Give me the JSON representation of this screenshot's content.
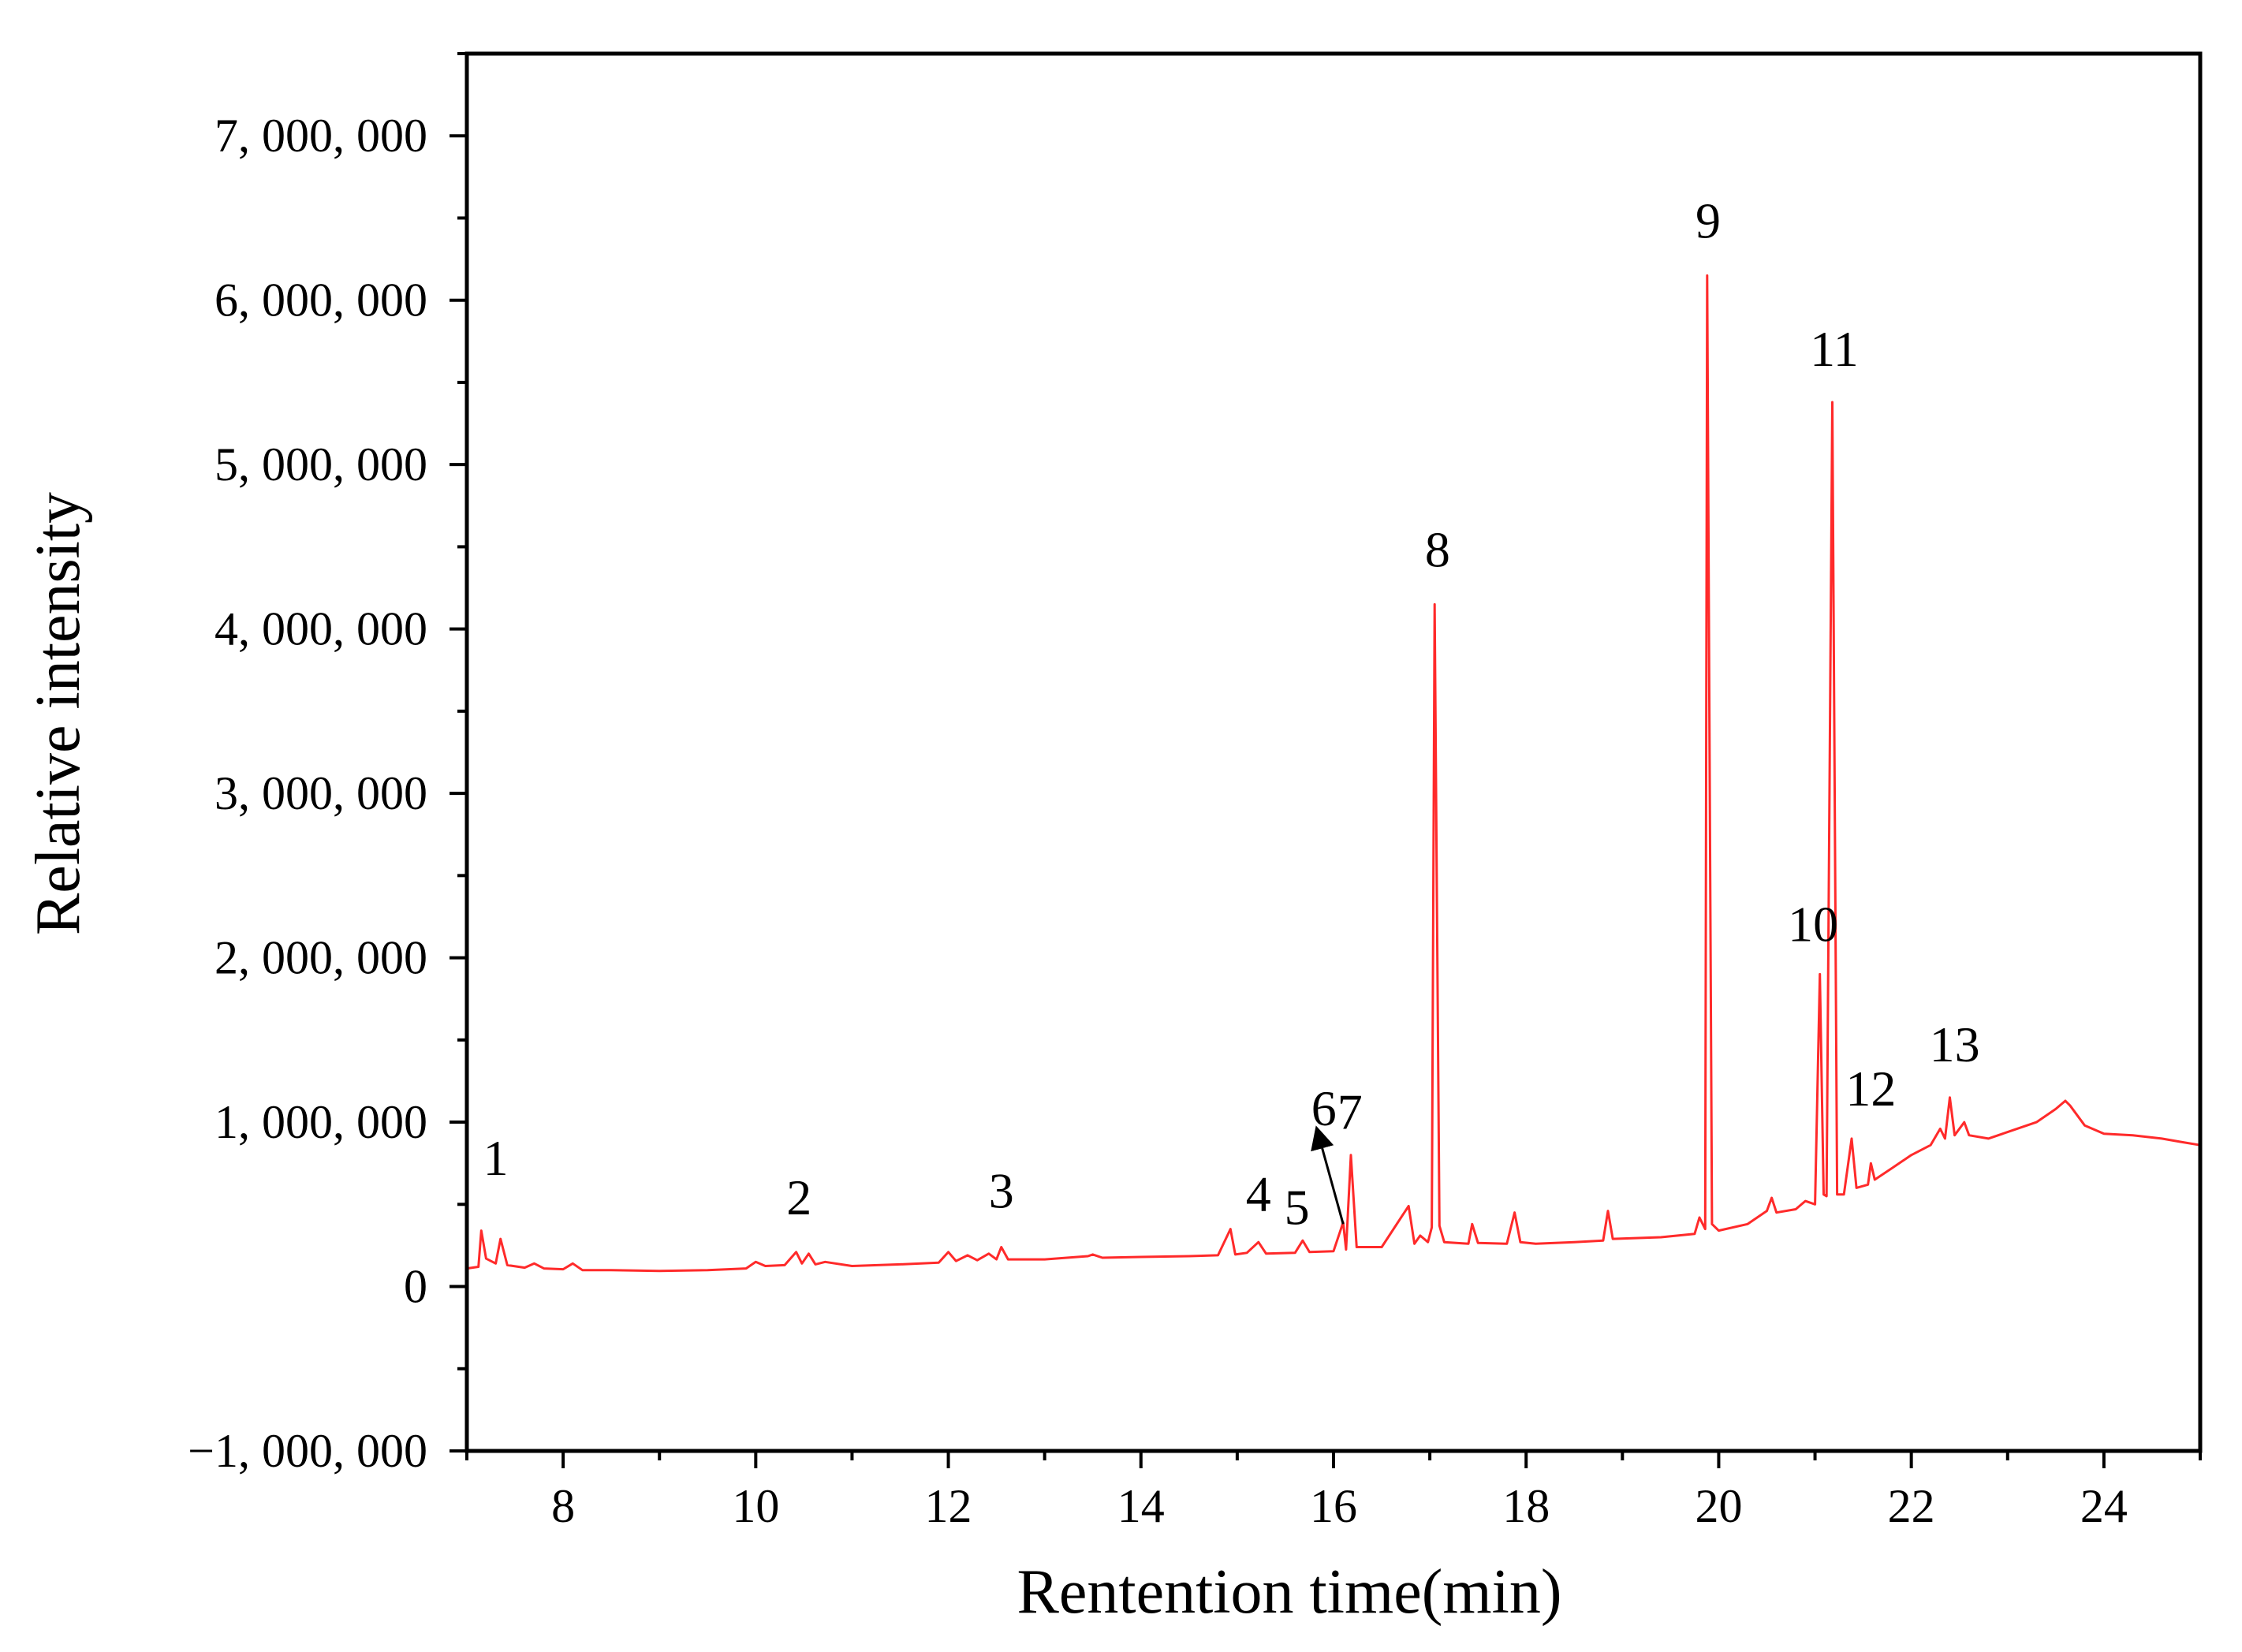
{
  "chart_data": {
    "type": "line",
    "title": "",
    "xlabel": "Rentention time(min)",
    "ylabel": "Relative intensity",
    "xlim": [
      7,
      25
    ],
    "ylim": [
      -1000000,
      7500000
    ],
    "x_ticks": [
      8,
      10,
      12,
      14,
      16,
      18,
      20,
      22,
      24
    ],
    "y_ticks": [
      -1000000,
      0,
      1000000,
      2000000,
      3000000,
      4000000,
      5000000,
      6000000,
      7000000
    ],
    "y_tick_labels": [
      "−1, 000, 000",
      "0",
      "1, 000, 000",
      "2, 000, 000",
      "3, 000, 000",
      "4, 000, 000",
      "5, 000, 000",
      "6, 000, 000",
      "7, 000, 000"
    ],
    "grid": false,
    "legend": "none",
    "line_color": "#ff2a2a",
    "series": [
      {
        "points": [
          [
            7.0,
            110000
          ],
          [
            7.12,
            120000
          ],
          [
            7.15,
            340000
          ],
          [
            7.2,
            170000
          ],
          [
            7.3,
            140000
          ],
          [
            7.35,
            290000
          ],
          [
            7.42,
            130000
          ],
          [
            7.6,
            115000
          ],
          [
            7.7,
            140000
          ],
          [
            7.8,
            110000
          ],
          [
            8.0,
            105000
          ],
          [
            8.1,
            140000
          ],
          [
            8.2,
            100000
          ],
          [
            8.5,
            100000
          ],
          [
            9.0,
            95000
          ],
          [
            9.5,
            100000
          ],
          [
            9.9,
            110000
          ],
          [
            10.0,
            150000
          ],
          [
            10.1,
            125000
          ],
          [
            10.3,
            130000
          ],
          [
            10.42,
            210000
          ],
          [
            10.48,
            140000
          ],
          [
            10.55,
            200000
          ],
          [
            10.62,
            135000
          ],
          [
            10.72,
            150000
          ],
          [
            11.0,
            125000
          ],
          [
            11.5,
            135000
          ],
          [
            11.9,
            145000
          ],
          [
            12.0,
            210000
          ],
          [
            12.08,
            155000
          ],
          [
            12.2,
            190000
          ],
          [
            12.3,
            160000
          ],
          [
            12.42,
            200000
          ],
          [
            12.5,
            165000
          ],
          [
            12.55,
            240000
          ],
          [
            12.62,
            165000
          ],
          [
            13.0,
            165000
          ],
          [
            13.45,
            185000
          ],
          [
            13.5,
            195000
          ],
          [
            13.6,
            175000
          ],
          [
            14.0,
            180000
          ],
          [
            14.5,
            185000
          ],
          [
            14.8,
            190000
          ],
          [
            14.93,
            350000
          ],
          [
            14.98,
            195000
          ],
          [
            15.1,
            205000
          ],
          [
            15.22,
            270000
          ],
          [
            15.3,
            200000
          ],
          [
            15.6,
            205000
          ],
          [
            15.68,
            280000
          ],
          [
            15.75,
            210000
          ],
          [
            16.0,
            215000
          ],
          [
            16.1,
            390000
          ],
          [
            16.13,
            225000
          ],
          [
            16.18,
            800000
          ],
          [
            16.24,
            240000
          ],
          [
            16.5,
            240000
          ],
          [
            16.78,
            490000
          ],
          [
            16.84,
            260000
          ],
          [
            16.9,
            310000
          ],
          [
            16.98,
            270000
          ],
          [
            17.02,
            360000
          ],
          [
            17.05,
            4150000
          ],
          [
            17.1,
            370000
          ],
          [
            17.15,
            270000
          ],
          [
            17.4,
            260000
          ],
          [
            17.44,
            380000
          ],
          [
            17.5,
            265000
          ],
          [
            17.8,
            260000
          ],
          [
            17.88,
            450000
          ],
          [
            17.94,
            270000
          ],
          [
            18.1,
            260000
          ],
          [
            18.5,
            270000
          ],
          [
            18.8,
            280000
          ],
          [
            18.85,
            460000
          ],
          [
            18.9,
            290000
          ],
          [
            19.4,
            300000
          ],
          [
            19.75,
            320000
          ],
          [
            19.8,
            420000
          ],
          [
            19.86,
            350000
          ],
          [
            19.88,
            6150000
          ],
          [
            19.93,
            380000
          ],
          [
            20.0,
            340000
          ],
          [
            20.3,
            380000
          ],
          [
            20.5,
            460000
          ],
          [
            20.55,
            540000
          ],
          [
            20.6,
            450000
          ],
          [
            20.8,
            470000
          ],
          [
            20.9,
            520000
          ],
          [
            21.0,
            500000
          ],
          [
            21.05,
            1900000
          ],
          [
            21.09,
            560000
          ],
          [
            21.12,
            550000
          ],
          [
            21.18,
            5380000
          ],
          [
            21.23,
            560000
          ],
          [
            21.3,
            560000
          ],
          [
            21.38,
            900000
          ],
          [
            21.43,
            600000
          ],
          [
            21.55,
            620000
          ],
          [
            21.58,
            750000
          ],
          [
            21.62,
            650000
          ],
          [
            21.8,
            720000
          ],
          [
            22.0,
            800000
          ],
          [
            22.2,
            860000
          ],
          [
            22.3,
            960000
          ],
          [
            22.35,
            900000
          ],
          [
            22.4,
            1150000
          ],
          [
            22.45,
            920000
          ],
          [
            22.55,
            1000000
          ],
          [
            22.6,
            920000
          ],
          [
            22.8,
            900000
          ],
          [
            23.0,
            940000
          ],
          [
            23.3,
            1000000
          ],
          [
            23.5,
            1080000
          ],
          [
            23.6,
            1130000
          ],
          [
            23.65,
            1100000
          ],
          [
            23.8,
            980000
          ],
          [
            24.0,
            930000
          ],
          [
            24.3,
            920000
          ],
          [
            24.6,
            900000
          ],
          [
            24.8,
            880000
          ],
          [
            25.0,
            860000
          ]
        ]
      }
    ],
    "annotations": [
      {
        "text": "1",
        "x": 7.3,
        "y": 680000
      },
      {
        "text": "2",
        "x": 10.45,
        "y": 440000
      },
      {
        "text": "3",
        "x": 12.55,
        "y": 480000
      },
      {
        "text": "4",
        "x": 15.22,
        "y": 460000
      },
      {
        "text": "5",
        "x": 15.62,
        "y": 380000
      },
      {
        "text": "6",
        "x": 15.9,
        "y": 980000
      },
      {
        "text": "7",
        "x": 16.17,
        "y": 960000
      },
      {
        "text": "8",
        "x": 17.08,
        "y": 4380000
      },
      {
        "text": "9",
        "x": 19.89,
        "y": 6380000
      },
      {
        "text": "10",
        "x": 20.98,
        "y": 2100000
      },
      {
        "text": "11",
        "x": 21.2,
        "y": 5600000
      },
      {
        "text": "12",
        "x": 21.58,
        "y": 1100000
      },
      {
        "text": "13",
        "x": 22.45,
        "y": 1370000
      }
    ],
    "arrow": {
      "from": [
        16.1,
        380000
      ],
      "to": [
        15.85,
        910000
      ]
    }
  }
}
